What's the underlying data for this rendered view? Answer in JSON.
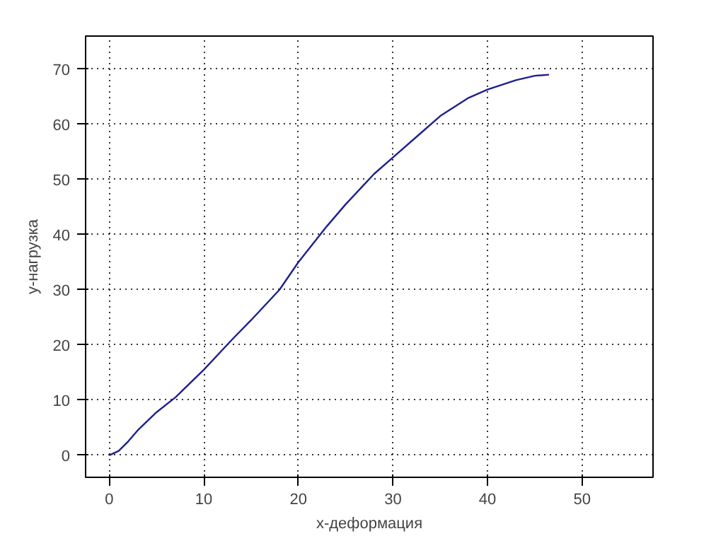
{
  "chart_data": {
    "type": "line",
    "xlabel": "x-деформация",
    "ylabel": "y-нагрузка",
    "x": [
      0,
      1,
      2,
      3,
      5,
      7,
      10,
      13,
      15,
      18,
      20,
      23,
      25,
      28,
      30,
      33,
      35,
      38,
      40,
      43,
      45,
      46.5
    ],
    "series": [
      {
        "color": "#1f1f8f",
        "values": [
          0,
          0.8,
          2.5,
          4.5,
          7.8,
          10.5,
          15.5,
          21,
          24.5,
          30,
          35,
          41.5,
          45.5,
          51,
          54,
          58.5,
          61.5,
          64.8,
          66.3,
          68,
          68.8,
          69
        ]
      }
    ],
    "xlim": [
      -2.5,
      57.5
    ],
    "ylim": [
      -4,
      76
    ],
    "xticks": [
      0,
      10,
      20,
      30,
      40,
      50
    ],
    "yticks": [
      0,
      10,
      20,
      30,
      40,
      50,
      60,
      70
    ],
    "grid": true,
    "line_style": "solid"
  }
}
